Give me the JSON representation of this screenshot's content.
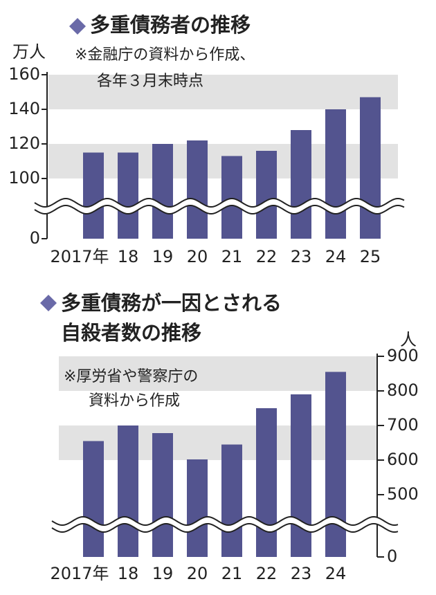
{
  "chart_data": [
    {
      "type": "bar",
      "title": "多重債務者の推移",
      "y_label": "万人",
      "note": [
        "※金融庁の資料から作成、",
        "各年３月末時点"
      ],
      "categories": [
        "2017年",
        "18",
        "19",
        "20",
        "21",
        "22",
        "23",
        "24",
        "25"
      ],
      "values": [
        115,
        115,
        120,
        122,
        113,
        116,
        128,
        140,
        147
      ],
      "color": "#53548f",
      "ylim": [
        0,
        160
      ],
      "yticks": [
        0,
        100,
        120,
        140,
        160
      ],
      "broken_axis": true,
      "alternating_bands": true,
      "axis_side": "left"
    },
    {
      "type": "bar",
      "title": [
        "多重債務が一因とされる",
        "自殺者数の推移"
      ],
      "y_label": "人",
      "note": [
        "※厚労省や警察庁の",
        "資料から作成"
      ],
      "categories": [
        "2017年",
        "18",
        "19",
        "20",
        "21",
        "22",
        "23",
        "24"
      ],
      "values": [
        655,
        700,
        678,
        602,
        645,
        750,
        790,
        855
      ],
      "color": "#53548f",
      "ylim": [
        0,
        900
      ],
      "yticks": [
        0,
        500,
        600,
        700,
        800,
        900
      ],
      "broken_axis": true,
      "alternating_bands": true,
      "axis_side": "right"
    }
  ]
}
